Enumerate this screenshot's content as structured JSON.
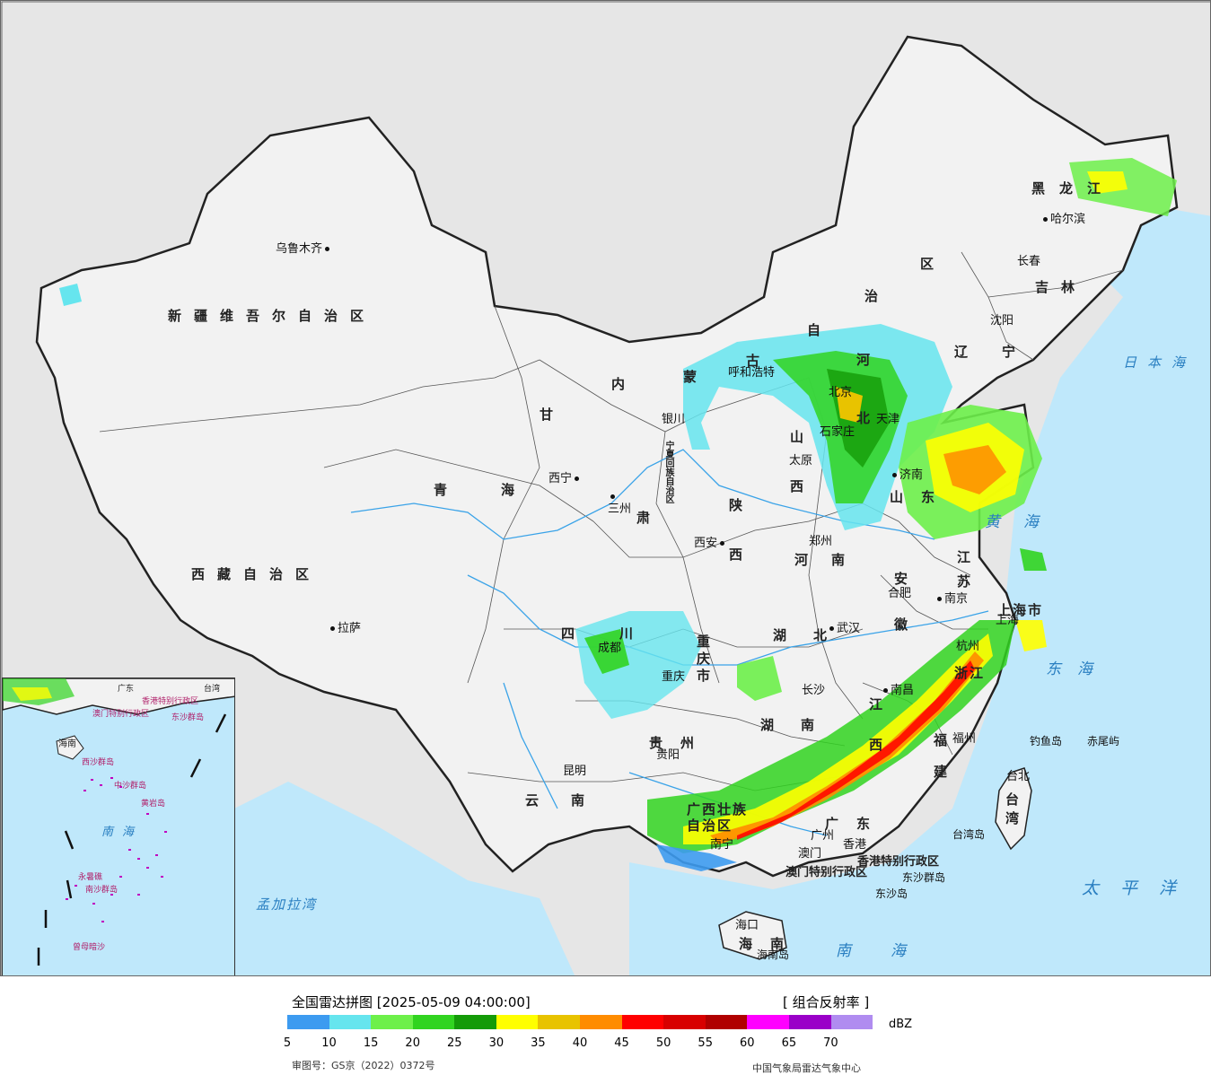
{
  "legend": {
    "title": "全国雷达拼图 [2025-05-09 04:00:00]",
    "product": "[ 组合反射率 ]",
    "unit": "dBZ",
    "review_number": "审图号：GS京（2022）0372号",
    "credit": "中国气象局雷达气象中心",
    "colors": [
      "#3d9bf0",
      "#66e5ee",
      "#6df04a",
      "#31d420",
      "#149b08",
      "#ffff00",
      "#e8c300",
      "#ff8c00",
      "#ff0000",
      "#d80000",
      "#b00000",
      "#ff00ff",
      "#9a00c8",
      "#b08cf0"
    ],
    "ticks": [
      "5",
      "10",
      "15",
      "20",
      "25",
      "30",
      "35",
      "40",
      "45",
      "50",
      "55",
      "60",
      "65",
      "70"
    ]
  },
  "cities": {
    "urumqi": "乌鲁木齐",
    "lhasa": "拉萨",
    "xining": "西宁",
    "lanzhou": "三州",
    "yinchuan": "银川",
    "hohhot": "呼和浩特",
    "beijing": "北京",
    "tianjin": "天津",
    "shijiazhuang": "石家庄",
    "taiyuan": "太原",
    "jinan": "济南",
    "zhengzhou": "郑州",
    "xian": "西安",
    "chengdu": "成都",
    "chongqing": "重庆",
    "wuhan": "武汉",
    "hefei": "合肥",
    "nanjing": "南京",
    "shanghai": "上海",
    "hangzhou": "杭州",
    "nanchang": "南昌",
    "changsha": "长沙",
    "guiyang": "贵阳",
    "kunming": "昆明",
    "nanning": "南宁",
    "guangzhou": "广州",
    "fuzhou": "福州",
    "taipei": "台北",
    "haikou": "海口",
    "hongkong": "香港",
    "macau": "澳门",
    "shenyang": "沈阳",
    "changchun": "长春",
    "harbin": "哈尔滨"
  },
  "provinces": {
    "xinjiang": "新疆维吾尔自治区",
    "xizang": "西藏自治区",
    "qinghai": "青海",
    "gansu": "甘",
    "gansu2": "肃",
    "ningxia": "宁夏回族自治区",
    "neimenggu_1": "内",
    "neimenggu_2": "蒙",
    "neimenggu_3": "古",
    "neimenggu_4": "自",
    "neimenggu_5": "治",
    "neimenggu_6": "区",
    "heilongjiang": "黑龙江",
    "jilin": "吉林",
    "liaoning": "辽宁",
    "hebei": "河北",
    "shanxi": "山西",
    "shandong": "山东",
    "henan": "河南",
    "shaanxi": "陕西",
    "sichuan": "四川",
    "chongqing_shi": "重庆市",
    "hubei": "湖北",
    "hunan": "湖南",
    "anhui": "安徽",
    "jiangsu": "江苏",
    "shanghai_shi": "上海市",
    "zhejiang": "浙江",
    "jiangxi": "江西",
    "fujian": "福建",
    "guizhou": "贵州",
    "yunnan": "云南",
    "guangxi": "广西壮族自治区",
    "guangdong": "广东",
    "hainan": "海南",
    "taiwan": "台湾",
    "hk_sar": "香港特别行政区",
    "macau_sar": "澳门特别行政区"
  },
  "islands": {
    "diaoyu": "钓鱼岛",
    "chiwei": "赤尾屿",
    "dongsha_qundao": "东沙群岛",
    "dongsha_dao": "东沙岛",
    "hainan_dao": "海南岛",
    "taiwan_dao": "台湾岛"
  },
  "seas": {
    "japan_sea": "日本海",
    "yellow_sea": "黄海",
    "east_sea": "东海",
    "pacific": "太平洋",
    "south_sea": "南海",
    "bengal": "孟加拉湾"
  },
  "inset": {
    "south_sea": "南海",
    "xisha": "西沙群岛",
    "zhongsha": "中沙群岛",
    "nansha": "南沙群岛",
    "huangyan": "黄岩岛",
    "zengmu": "曾母暗沙",
    "yongshu": "永暑礁",
    "dongsha": "东沙群岛",
    "hainan": "海南",
    "guangdong": "广东",
    "hk": "香港特别行政区",
    "macau": "澳门特别行政区",
    "taiwan": "台湾"
  }
}
